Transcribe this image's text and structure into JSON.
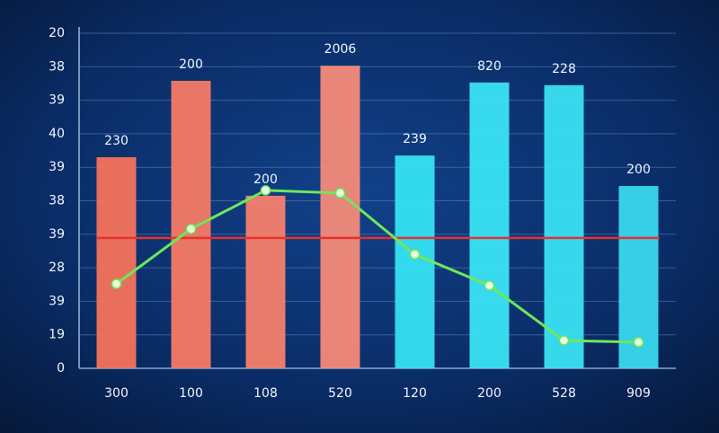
{
  "chart_data": {
    "type": "bar",
    "categories": [
      "300",
      "100",
      "108",
      "520",
      "120",
      "200",
      "528",
      "909"
    ],
    "values": [
      6.3,
      8.58,
      5.15,
      9.03,
      6.35,
      8.53,
      8.45,
      5.44
    ],
    "colors": [
      "#f5735c",
      "#f57a65",
      "#f5806c",
      "#f58a79",
      "#36e2f2",
      "#3ae4f4",
      "#3ae2f2",
      "#3ad8ee"
    ],
    "bar_annotations": [
      "230",
      "200",
      "200",
      "2006",
      "239",
      "820",
      "228",
      "200"
    ],
    "line_values": [
      2.52,
      4.16,
      5.31,
      5.23,
      3.4,
      2.47,
      0.83,
      0.78
    ],
    "line_color": "#6ee85a",
    "reference_line": 3.89,
    "reference_color": "#e8302c",
    "ylim": [
      0,
      10
    ],
    "yticks": [
      0,
      {
        "value": 1,
        "label": "19"
      },
      {
        "value": 2,
        "label": "39"
      },
      {
        "value": 3,
        "label": "28"
      },
      {
        "value": 4,
        "label": "39"
      },
      {
        "value": 5,
        "label": "38"
      },
      {
        "value": 6,
        "label": "39"
      },
      {
        "value": 7,
        "label": "40"
      },
      {
        "value": 8,
        "label": "39"
      },
      {
        "value": 9,
        "label": "38"
      },
      {
        "value": 10,
        "label": "20"
      }
    ],
    "grid": true
  }
}
